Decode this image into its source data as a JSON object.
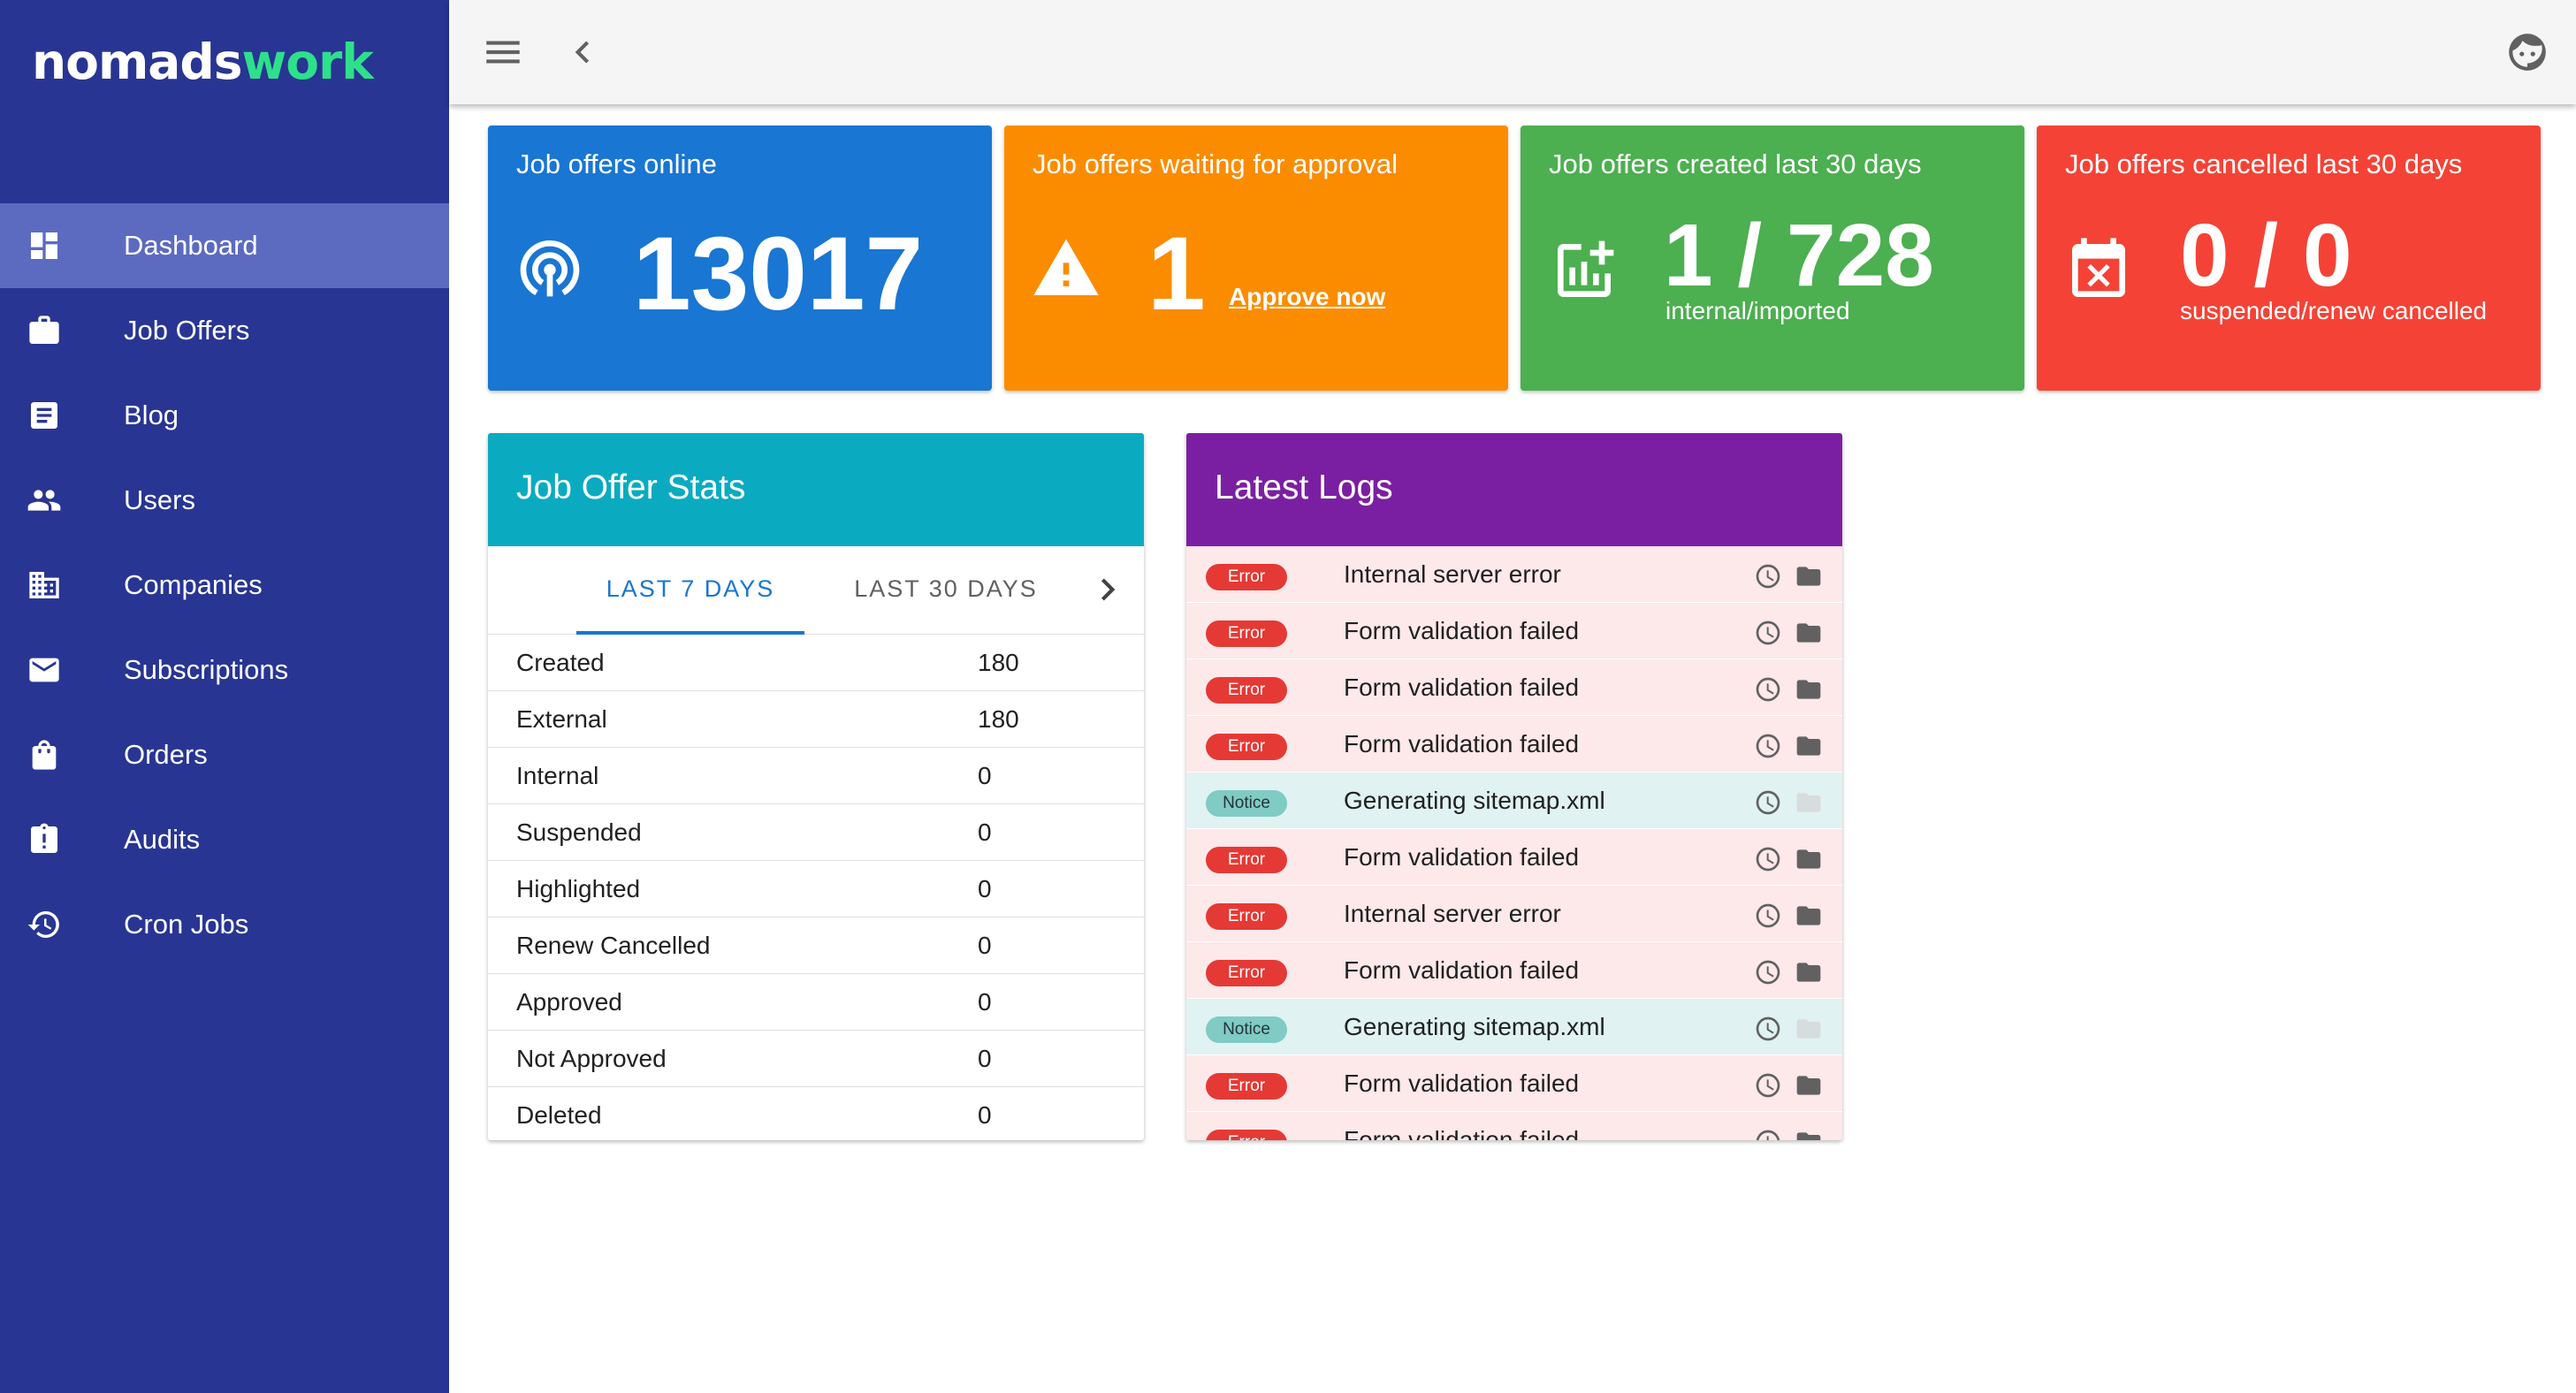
{
  "brand": {
    "part1": "nomads",
    "part2": "work"
  },
  "colors": {
    "sidebar": "#283593",
    "sidebar_active": "#5c6bc0",
    "logo_accent": "#2ee08a",
    "card_online": "#1976d2",
    "card_waiting": "#fb8c00",
    "card_created": "#4caf50",
    "card_cancelled": "#f44336",
    "stats_header": "#0aabc1",
    "logs_header": "#7b1fa2"
  },
  "sidebar": {
    "items": [
      {
        "label": "Dashboard",
        "icon": "dashboard-icon",
        "active": true
      },
      {
        "label": "Job Offers",
        "icon": "briefcase-icon"
      },
      {
        "label": "Blog",
        "icon": "article-icon"
      },
      {
        "label": "Users",
        "icon": "people-icon"
      },
      {
        "label": "Companies",
        "icon": "business-icon"
      },
      {
        "label": "Subscriptions",
        "icon": "mail-icon"
      },
      {
        "label": "Orders",
        "icon": "shopping-bag-icon"
      },
      {
        "label": "Audits",
        "icon": "clipboard-alert-icon"
      },
      {
        "label": "Cron Jobs",
        "icon": "restore-icon"
      }
    ]
  },
  "topbar": {
    "menu_icon": "menu-icon",
    "back_icon": "chevron-left-icon",
    "account_icon": "face-icon"
  },
  "cards": {
    "online": {
      "title": "Job offers online",
      "value": "13017",
      "icon": "broadcast-icon"
    },
    "waiting": {
      "title": "Job offers waiting for approval",
      "value": "1",
      "action": "Approve now",
      "icon": "warning-icon"
    },
    "created": {
      "title": "Job offers created last 30 days",
      "value": "1 / 728",
      "caption": "internal/imported",
      "icon": "add-chart-icon"
    },
    "cancelled": {
      "title": "Job offers cancelled last 30 days",
      "value": "0 / 0",
      "caption": "suspended/renew cancelled",
      "icon": "event-cancel-icon"
    }
  },
  "stats": {
    "title": "Job Offer Stats",
    "tabs": [
      "LAST 7 DAYS",
      "LAST 30 DAYS"
    ],
    "active_tab": 0,
    "rows": [
      {
        "label": "Created",
        "value": "180"
      },
      {
        "label": "External",
        "value": "180"
      },
      {
        "label": "Internal",
        "value": "0"
      },
      {
        "label": "Suspended",
        "value": "0"
      },
      {
        "label": "Highlighted",
        "value": "0"
      },
      {
        "label": "Renew Cancelled",
        "value": "0"
      },
      {
        "label": "Approved",
        "value": "0"
      },
      {
        "label": "Not Approved",
        "value": "0"
      },
      {
        "label": "Deleted",
        "value": "0"
      }
    ]
  },
  "logs": {
    "title": "Latest Logs",
    "items": [
      {
        "level": "Error",
        "message": "Internal server error"
      },
      {
        "level": "Error",
        "message": "Form validation failed"
      },
      {
        "level": "Error",
        "message": "Form validation failed"
      },
      {
        "level": "Error",
        "message": "Form validation failed"
      },
      {
        "level": "Notice",
        "message": "Generating sitemap.xml"
      },
      {
        "level": "Error",
        "message": "Form validation failed"
      },
      {
        "level": "Error",
        "message": "Internal server error"
      },
      {
        "level": "Error",
        "message": "Form validation failed"
      },
      {
        "level": "Notice",
        "message": "Generating sitemap.xml"
      },
      {
        "level": "Error",
        "message": "Form validation failed"
      },
      {
        "level": "Error",
        "message": "Form validation failed"
      }
    ]
  }
}
